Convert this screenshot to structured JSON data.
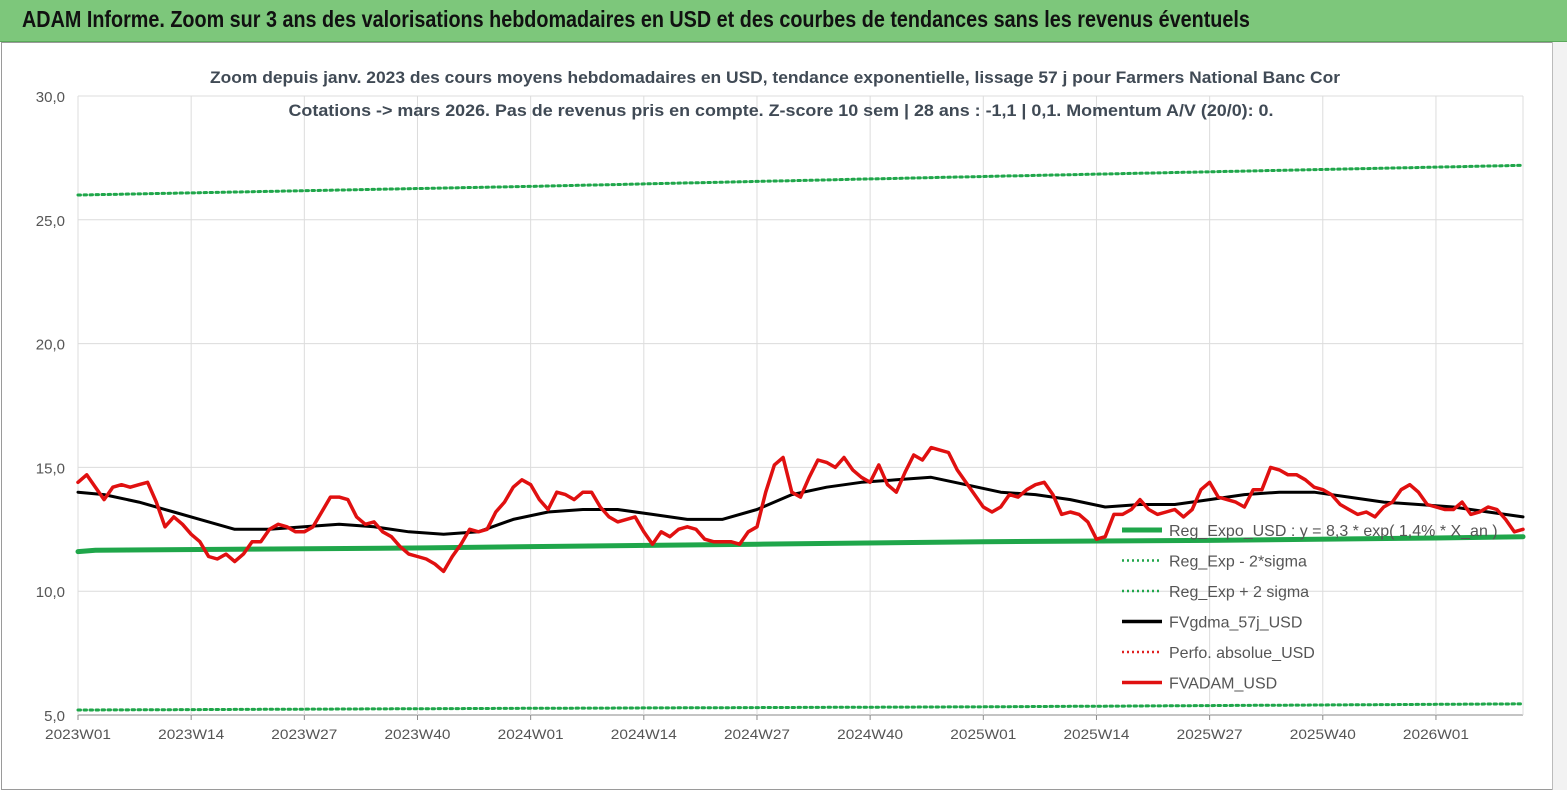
{
  "page": {
    "banner_title": "ADAM Informe. Zoom sur 3 ans des valorisations hebdomadaires en USD et des courbes de tendances sans les revenus éventuels"
  },
  "chart_data": {
    "type": "line",
    "title_line1": "Zoom depuis janv. 2023 des cours moyens hebdomadaires en USD, tendance exponentielle, lissage 57 j pour Farmers National Banc Cor",
    "title_line2": "Cotations -> mars 2026. Pas de revenus pris en compte. Z-score 10 sem | 28 ans : -1,1 | 0,1. Momentum A/V (20/0): 0.",
    "ylim": [
      5,
      30
    ],
    "yticks": [
      "5,0",
      "10,0",
      "15,0",
      "20,0",
      "25,0",
      "30,0"
    ],
    "grid": true,
    "legend_position": "bottom-right",
    "x_count": 167,
    "x_tick_labels": [
      {
        "index": 0,
        "label": "2023W01"
      },
      {
        "index": 13,
        "label": "2023W14"
      },
      {
        "index": 26,
        "label": "2023W27"
      },
      {
        "index": 39,
        "label": "2023W40"
      },
      {
        "index": 52,
        "label": "2024W01"
      },
      {
        "index": 65,
        "label": "2024W14"
      },
      {
        "index": 78,
        "label": "2024W27"
      },
      {
        "index": 91,
        "label": "2024W40"
      },
      {
        "index": 104,
        "label": "2025W01"
      },
      {
        "index": 117,
        "label": "2025W14"
      },
      {
        "index": 130,
        "label": "2025W27"
      },
      {
        "index": 143,
        "label": "2025W40"
      },
      {
        "index": 156,
        "label": "2026W01"
      }
    ],
    "series": [
      {
        "name": "Reg_Expo_USD : y = 8,3 * exp( 1,4% * X_an )",
        "color": "#1fa64a",
        "style": "thick",
        "points": [
          [
            0,
            11.6
          ],
          [
            2,
            11.65
          ],
          [
            20,
            11.7
          ],
          [
            40,
            11.75
          ],
          [
            52,
            11.8
          ],
          [
            78,
            11.9
          ],
          [
            104,
            12.0
          ],
          [
            130,
            12.05
          ],
          [
            156,
            12.15
          ],
          [
            166,
            12.2
          ]
        ]
      },
      {
        "name": "Reg_Exp - 2*sigma",
        "color": "#1fa64a",
        "style": "dotted",
        "points": [
          [
            0,
            5.2
          ],
          [
            52,
            5.27
          ],
          [
            104,
            5.33
          ],
          [
            166,
            5.45
          ]
        ]
      },
      {
        "name": "Reg_Exp + 2 sigma",
        "color": "#1fa64a",
        "style": "dotted",
        "points": [
          [
            0,
            26.0
          ],
          [
            52,
            26.35
          ],
          [
            104,
            26.75
          ],
          [
            166,
            27.2
          ]
        ]
      },
      {
        "name": "FVgdma_57j_USD",
        "color": "#000000",
        "style": "solid",
        "points": [
          [
            0,
            14.0
          ],
          [
            3,
            13.9
          ],
          [
            7,
            13.6
          ],
          [
            11,
            13.2
          ],
          [
            14,
            12.9
          ],
          [
            18,
            12.5
          ],
          [
            22,
            12.5
          ],
          [
            26,
            12.6
          ],
          [
            30,
            12.7
          ],
          [
            34,
            12.6
          ],
          [
            38,
            12.4
          ],
          [
            42,
            12.3
          ],
          [
            46,
            12.4
          ],
          [
            50,
            12.9
          ],
          [
            54,
            13.2
          ],
          [
            58,
            13.3
          ],
          [
            62,
            13.3
          ],
          [
            66,
            13.1
          ],
          [
            70,
            12.9
          ],
          [
            74,
            12.9
          ],
          [
            78,
            13.3
          ],
          [
            82,
            13.9
          ],
          [
            86,
            14.2
          ],
          [
            90,
            14.4
          ],
          [
            94,
            14.5
          ],
          [
            98,
            14.6
          ],
          [
            102,
            14.3
          ],
          [
            106,
            14.0
          ],
          [
            110,
            13.9
          ],
          [
            114,
            13.7
          ],
          [
            118,
            13.4
          ],
          [
            122,
            13.5
          ],
          [
            126,
            13.5
          ],
          [
            130,
            13.7
          ],
          [
            134,
            13.9
          ],
          [
            138,
            14.0
          ],
          [
            142,
            14.0
          ],
          [
            146,
            13.8
          ],
          [
            150,
            13.6
          ],
          [
            154,
            13.5
          ],
          [
            158,
            13.4
          ],
          [
            162,
            13.2
          ],
          [
            166,
            13.0
          ]
        ]
      },
      {
        "name": "Perfo. absolue_USD",
        "color": "#e02020",
        "style": "dotted",
        "points": []
      },
      {
        "name": "FVADAM_USD",
        "color": "#e01010",
        "style": "thick",
        "points": [
          [
            0,
            14.4
          ],
          [
            1,
            14.7
          ],
          [
            2,
            14.2
          ],
          [
            3,
            13.7
          ],
          [
            4,
            14.2
          ],
          [
            5,
            14.3
          ],
          [
            6,
            14.2
          ],
          [
            7,
            14.3
          ],
          [
            8,
            14.4
          ],
          [
            9,
            13.6
          ],
          [
            10,
            12.6
          ],
          [
            11,
            13.0
          ],
          [
            12,
            12.7
          ],
          [
            13,
            12.3
          ],
          [
            14,
            12.0
          ],
          [
            15,
            11.4
          ],
          [
            16,
            11.3
          ],
          [
            17,
            11.5
          ],
          [
            18,
            11.2
          ],
          [
            19,
            11.5
          ],
          [
            20,
            12.0
          ],
          [
            21,
            12.0
          ],
          [
            22,
            12.5
          ],
          [
            23,
            12.7
          ],
          [
            24,
            12.6
          ],
          [
            25,
            12.4
          ],
          [
            26,
            12.4
          ],
          [
            27,
            12.6
          ],
          [
            28,
            13.2
          ],
          [
            29,
            13.8
          ],
          [
            30,
            13.8
          ],
          [
            31,
            13.7
          ],
          [
            32,
            13.0
          ],
          [
            33,
            12.7
          ],
          [
            34,
            12.8
          ],
          [
            35,
            12.4
          ],
          [
            36,
            12.2
          ],
          [
            37,
            11.8
          ],
          [
            38,
            11.5
          ],
          [
            39,
            11.4
          ],
          [
            40,
            11.3
          ],
          [
            41,
            11.1
          ],
          [
            42,
            10.8
          ],
          [
            43,
            11.4
          ],
          [
            44,
            11.9
          ],
          [
            45,
            12.5
          ],
          [
            46,
            12.4
          ],
          [
            47,
            12.5
          ],
          [
            48,
            13.2
          ],
          [
            49,
            13.6
          ],
          [
            50,
            14.2
          ],
          [
            51,
            14.5
          ],
          [
            52,
            14.3
          ],
          [
            53,
            13.7
          ],
          [
            54,
            13.3
          ],
          [
            55,
            14.0
          ],
          [
            56,
            13.9
          ],
          [
            57,
            13.7
          ],
          [
            58,
            14.0
          ],
          [
            59,
            14.0
          ],
          [
            60,
            13.4
          ],
          [
            61,
            13.0
          ],
          [
            62,
            12.8
          ],
          [
            63,
            12.9
          ],
          [
            64,
            13.0
          ],
          [
            65,
            12.4
          ],
          [
            66,
            11.9
          ],
          [
            67,
            12.4
          ],
          [
            68,
            12.2
          ],
          [
            69,
            12.5
          ],
          [
            70,
            12.6
          ],
          [
            71,
            12.5
          ],
          [
            72,
            12.1
          ],
          [
            73,
            12.0
          ],
          [
            74,
            12.0
          ],
          [
            75,
            12.0
          ],
          [
            76,
            11.9
          ],
          [
            77,
            12.4
          ],
          [
            78,
            12.6
          ],
          [
            79,
            14.0
          ],
          [
            80,
            15.1
          ],
          [
            81,
            15.4
          ],
          [
            82,
            14.0
          ],
          [
            83,
            13.8
          ],
          [
            84,
            14.6
          ],
          [
            85,
            15.3
          ],
          [
            86,
            15.2
          ],
          [
            87,
            15.0
          ],
          [
            88,
            15.4
          ],
          [
            89,
            14.9
          ],
          [
            90,
            14.6
          ],
          [
            91,
            14.4
          ],
          [
            92,
            15.1
          ],
          [
            93,
            14.3
          ],
          [
            94,
            14.0
          ],
          [
            95,
            14.8
          ],
          [
            96,
            15.5
          ],
          [
            97,
            15.3
          ],
          [
            98,
            15.8
          ],
          [
            99,
            15.7
          ],
          [
            100,
            15.6
          ],
          [
            101,
            14.9
          ],
          [
            102,
            14.4
          ],
          [
            103,
            13.9
          ],
          [
            104,
            13.4
          ],
          [
            105,
            13.2
          ],
          [
            106,
            13.4
          ],
          [
            107,
            13.9
          ],
          [
            108,
            13.8
          ],
          [
            109,
            14.1
          ],
          [
            110,
            14.3
          ],
          [
            111,
            14.4
          ],
          [
            112,
            13.9
          ],
          [
            113,
            13.1
          ],
          [
            114,
            13.2
          ],
          [
            115,
            13.1
          ],
          [
            116,
            12.8
          ],
          [
            117,
            12.1
          ],
          [
            118,
            12.2
          ],
          [
            119,
            13.1
          ],
          [
            120,
            13.1
          ],
          [
            121,
            13.3
          ],
          [
            122,
            13.7
          ],
          [
            123,
            13.3
          ],
          [
            124,
            13.1
          ],
          [
            125,
            13.2
          ],
          [
            126,
            13.3
          ],
          [
            127,
            13.0
          ],
          [
            128,
            13.3
          ],
          [
            129,
            14.1
          ],
          [
            130,
            14.4
          ],
          [
            131,
            13.8
          ],
          [
            132,
            13.7
          ],
          [
            133,
            13.6
          ],
          [
            134,
            13.4
          ],
          [
            135,
            14.1
          ],
          [
            136,
            14.1
          ],
          [
            137,
            15.0
          ],
          [
            138,
            14.9
          ],
          [
            139,
            14.7
          ],
          [
            140,
            14.7
          ],
          [
            141,
            14.5
          ],
          [
            142,
            14.2
          ],
          [
            143,
            14.1
          ],
          [
            144,
            13.9
          ],
          [
            145,
            13.5
          ],
          [
            146,
            13.3
          ],
          [
            147,
            13.1
          ],
          [
            148,
            13.2
          ],
          [
            149,
            13.0
          ],
          [
            150,
            13.4
          ],
          [
            151,
            13.6
          ],
          [
            152,
            14.1
          ],
          [
            153,
            14.3
          ],
          [
            154,
            14.0
          ],
          [
            155,
            13.5
          ],
          [
            156,
            13.4
          ],
          [
            157,
            13.3
          ],
          [
            158,
            13.3
          ],
          [
            159,
            13.6
          ],
          [
            160,
            13.1
          ],
          [
            161,
            13.2
          ],
          [
            162,
            13.4
          ],
          [
            163,
            13.3
          ],
          [
            164,
            12.9
          ],
          [
            165,
            12.4
          ],
          [
            166,
            12.5
          ]
        ]
      }
    ]
  }
}
